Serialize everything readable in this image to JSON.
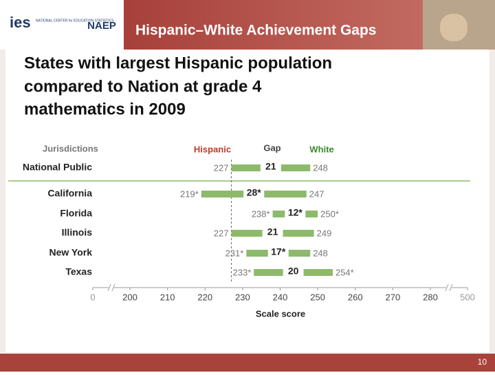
{
  "header": {
    "org": "ies",
    "org_sub": "NATIONAL CENTER for EDUCATION STATISTICS",
    "program": "NAEP",
    "banner": "Hispanic–White Achievement Gaps"
  },
  "slide_title": [
    "States with largest Hispanic population",
    "compared to Nation at grade 4",
    "mathematics in 2009"
  ],
  "chart_data": {
    "type": "dumbbell",
    "category_header": "Jurisdictions",
    "categories": [
      "National Public",
      "California",
      "Florida",
      "Illinois",
      "New York",
      "Texas"
    ],
    "series": [
      {
        "name": "Hispanic",
        "color": "#c0392b",
        "values": [
          227,
          219,
          238,
          227,
          231,
          233
        ],
        "value_labels": [
          "227",
          "219*",
          "238*",
          "227",
          "231*",
          "233*"
        ]
      },
      {
        "name": "White",
        "color": "#3a8a2a",
        "values": [
          248,
          247,
          250,
          249,
          248,
          254
        ],
        "value_labels": [
          "248",
          "247",
          "250*",
          "249",
          "248",
          "254*"
        ]
      }
    ],
    "gaps": {
      "name": "Gap",
      "values": [
        21,
        28,
        12,
        21,
        17,
        20
      ],
      "value_labels": [
        "21",
        "28*",
        "12*",
        "21",
        "17*",
        "20"
      ]
    },
    "bar_color": "#8dba6a",
    "xlabel": "Scale score",
    "xlim": [
      0,
      500
    ],
    "xticks": [
      0,
      200,
      210,
      220,
      230,
      240,
      250,
      260,
      270,
      280,
      500
    ]
  },
  "page_number": "10"
}
